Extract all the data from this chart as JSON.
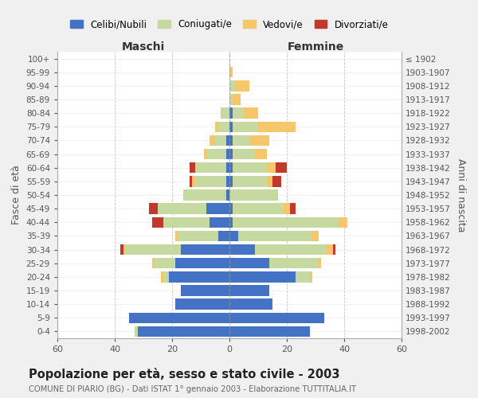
{
  "age_groups": [
    "0-4",
    "5-9",
    "10-14",
    "15-19",
    "20-24",
    "25-29",
    "30-34",
    "35-39",
    "40-44",
    "45-49",
    "50-54",
    "55-59",
    "60-64",
    "65-69",
    "70-74",
    "75-79",
    "80-84",
    "85-89",
    "90-94",
    "95-99",
    "100+"
  ],
  "birth_years": [
    "1998-2002",
    "1993-1997",
    "1988-1992",
    "1983-1987",
    "1978-1982",
    "1973-1977",
    "1968-1972",
    "1963-1967",
    "1958-1962",
    "1953-1957",
    "1948-1952",
    "1943-1947",
    "1938-1942",
    "1933-1937",
    "1928-1932",
    "1923-1927",
    "1918-1922",
    "1913-1917",
    "1908-1912",
    "1903-1907",
    "≤ 1902"
  ],
  "maschi": {
    "celibi": [
      32,
      35,
      19,
      17,
      21,
      19,
      17,
      4,
      7,
      8,
      1,
      1,
      1,
      1,
      1,
      0,
      0,
      0,
      0,
      0,
      0
    ],
    "coniugati": [
      1,
      0,
      0,
      0,
      2,
      7,
      19,
      14,
      16,
      17,
      15,
      11,
      11,
      7,
      4,
      4,
      3,
      0,
      0,
      0,
      0
    ],
    "vedovi": [
      0,
      0,
      0,
      0,
      1,
      1,
      1,
      1,
      0,
      0,
      0,
      1,
      0,
      1,
      2,
      1,
      0,
      0,
      0,
      0,
      0
    ],
    "divorziati": [
      0,
      0,
      0,
      0,
      0,
      0,
      1,
      0,
      4,
      3,
      0,
      1,
      2,
      0,
      0,
      0,
      0,
      0,
      0,
      0,
      0
    ]
  },
  "femmine": {
    "nubili": [
      28,
      33,
      15,
      14,
      23,
      14,
      9,
      3,
      1,
      1,
      0,
      1,
      1,
      1,
      1,
      1,
      1,
      0,
      0,
      0,
      0
    ],
    "coniugate": [
      0,
      0,
      0,
      0,
      5,
      17,
      25,
      26,
      37,
      18,
      17,
      12,
      12,
      8,
      6,
      9,
      4,
      1,
      2,
      0,
      0
    ],
    "vedove": [
      0,
      0,
      0,
      0,
      1,
      1,
      2,
      2,
      3,
      2,
      0,
      2,
      3,
      4,
      7,
      13,
      5,
      3,
      5,
      1,
      0
    ],
    "divorziate": [
      0,
      0,
      0,
      0,
      0,
      0,
      1,
      0,
      0,
      2,
      0,
      3,
      4,
      0,
      0,
      0,
      0,
      0,
      0,
      0,
      0
    ]
  },
  "colors": {
    "celibi": "#4472c4",
    "coniugati": "#c5d9a0",
    "vedovi": "#f5c76a",
    "divorziati": "#c0392b"
  },
  "xlim": 60,
  "title": "Popolazione per età, sesso e stato civile - 2003",
  "subtitle": "COMUNE DI PIARIO (BG) - Dati ISTAT 1° gennaio 2003 - Elaborazione TUTTITALIA.IT",
  "ylabel_left": "Fasce di età",
  "ylabel_right": "Anni di nascita",
  "xlabel_left": "Maschi",
  "xlabel_right": "Femmine",
  "bg_color": "#f0f0f0",
  "plot_bg": "#ffffff"
}
